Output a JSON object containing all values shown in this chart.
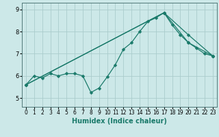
{
  "xlabel": "Humidex (Indice chaleur)",
  "bg_color": "#cce8e8",
  "grid_color": "#aacccc",
  "line_color": "#1a7a6a",
  "xlim": [
    -0.5,
    23.5
  ],
  "ylim": [
    4.6,
    9.3
  ],
  "yticks": [
    5,
    6,
    7,
    8,
    9
  ],
  "xticks": [
    0,
    1,
    2,
    3,
    4,
    5,
    6,
    7,
    8,
    9,
    10,
    11,
    12,
    13,
    14,
    15,
    16,
    17,
    18,
    19,
    20,
    21,
    22,
    23
  ],
  "line1_x": [
    0,
    1,
    2,
    3,
    4,
    5,
    6,
    7,
    8,
    9,
    10,
    11,
    12,
    13,
    14,
    15,
    16,
    17,
    18,
    19,
    20,
    21,
    22,
    23
  ],
  "line1_y": [
    5.6,
    6.0,
    5.9,
    6.1,
    6.0,
    6.1,
    6.1,
    6.0,
    5.25,
    5.45,
    5.95,
    6.5,
    7.2,
    7.5,
    8.0,
    8.45,
    8.62,
    8.85,
    8.3,
    7.85,
    7.5,
    7.25,
    7.0,
    6.9
  ],
  "line2_x": [
    0,
    17,
    20,
    23
  ],
  "line2_y": [
    5.6,
    8.85,
    7.85,
    6.9
  ],
  "line3_x": [
    0,
    17,
    20,
    23
  ],
  "line3_y": [
    5.6,
    8.85,
    7.5,
    6.9
  ],
  "marker_size": 2.5,
  "linewidth": 0.9,
  "xlabel_fontsize": 7,
  "tick_fontsize": 5.5
}
